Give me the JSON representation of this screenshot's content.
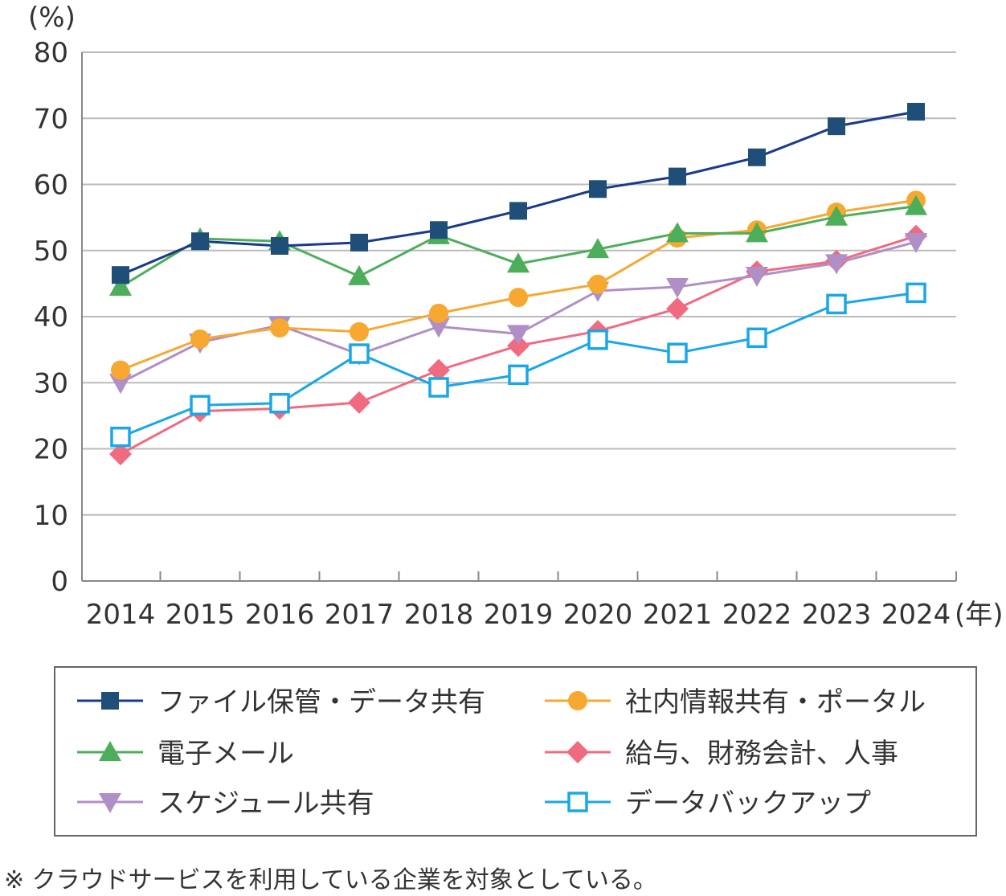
{
  "chart_data": {
    "type": "line",
    "ylabel": "(%)",
    "xlabel": "(年)",
    "ylim": [
      0,
      80
    ],
    "yticks": [
      0,
      10,
      20,
      30,
      40,
      50,
      60,
      70,
      80
    ],
    "grid": true,
    "legend_placement": "bottom",
    "x": [
      "2014",
      "2015",
      "2016",
      "2017",
      "2018",
      "2019",
      "2020",
      "2021",
      "2022",
      "2023",
      "2024"
    ],
    "series": [
      {
        "name": "ファイル保管・データ共有",
        "marker": "square",
        "color": "#1a3a8a",
        "fill": "#1f4e79",
        "values": [
          46.3,
          51.4,
          50.7,
          51.2,
          53.1,
          56.0,
          59.3,
          61.2,
          64.1,
          68.8,
          71.0
        ]
      },
      {
        "name": "社内情報共有・ポータル",
        "marker": "circle",
        "color": "#f7a830",
        "fill": "#f7a830",
        "values": [
          31.9,
          36.6,
          38.3,
          37.7,
          40.5,
          42.9,
          44.9,
          51.9,
          53.1,
          55.8,
          57.6
        ]
      },
      {
        "name": "電子メール",
        "marker": "triangle-up",
        "color": "#4cae5b",
        "fill": "#4cae5b",
        "values": [
          44.5,
          51.8,
          51.4,
          46.1,
          52.3,
          48.0,
          50.2,
          52.6,
          52.6,
          55.1,
          56.7
        ]
      },
      {
        "name": "給与、財務会計、人事",
        "marker": "diamond",
        "color": "#f06a80",
        "fill": "#f06a80",
        "values": [
          19.2,
          25.7,
          26.1,
          27.0,
          31.9,
          35.6,
          37.8,
          41.2,
          46.8,
          48.4,
          52.2
        ]
      },
      {
        "name": "スケジュール共有",
        "marker": "triangle-down",
        "color": "#b08fc7",
        "fill": "#b08fc7",
        "values": [
          30.0,
          36.1,
          38.7,
          34.3,
          38.5,
          37.4,
          43.9,
          44.5,
          46.2,
          48.1,
          51.3
        ]
      },
      {
        "name": "データバックアップ",
        "marker": "open-square",
        "color": "#1aa7e8",
        "fill": "#ffffff",
        "values": [
          21.8,
          26.6,
          26.9,
          34.4,
          29.3,
          31.2,
          36.5,
          34.5,
          36.8,
          41.9,
          43.6
        ]
      }
    ],
    "legend_order": [
      0,
      1,
      2,
      3,
      4,
      5
    ],
    "footnote": "※ クラウドサービスを利用している企業を対象としている。"
  }
}
